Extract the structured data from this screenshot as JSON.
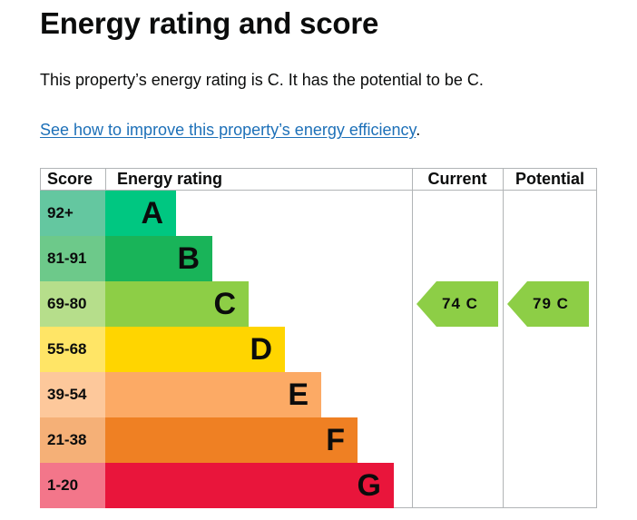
{
  "page": {
    "title": "Energy rating and score",
    "summary": "This property’s energy rating is C. It has the potential to be C.",
    "link_text": "See how to improve this property’s energy efficiency",
    "link_suffix": "."
  },
  "epc": {
    "headers": {
      "score": "Score",
      "rating": "Energy rating",
      "current": "Current",
      "potential": "Potential"
    },
    "bands": [
      {
        "range": "92+",
        "letter": "A",
        "color": "#00c781",
        "range_color": "#64c7a0"
      },
      {
        "range": "81-91",
        "letter": "B",
        "color": "#19b459",
        "range_color": "#6dc98a"
      },
      {
        "range": "69-80",
        "letter": "C",
        "color": "#8dce46",
        "range_color": "#b6de8b"
      },
      {
        "range": "55-68",
        "letter": "D",
        "color": "#ffd500",
        "range_color": "#ffe566"
      },
      {
        "range": "39-54",
        "letter": "E",
        "color": "#fcaa65",
        "range_color": "#fdc89b"
      },
      {
        "range": "21-38",
        "letter": "F",
        "color": "#ef8023",
        "range_color": "#f5b077"
      },
      {
        "range": "1-20",
        "letter": "G",
        "color": "#e9153b",
        "range_color": "#f3768a"
      }
    ],
    "current": {
      "label": "74  C",
      "score": 74,
      "band": "C",
      "color": "#8dce46"
    },
    "potential": {
      "label": "79  C",
      "score": 79,
      "band": "C",
      "color": "#8dce46"
    }
  }
}
